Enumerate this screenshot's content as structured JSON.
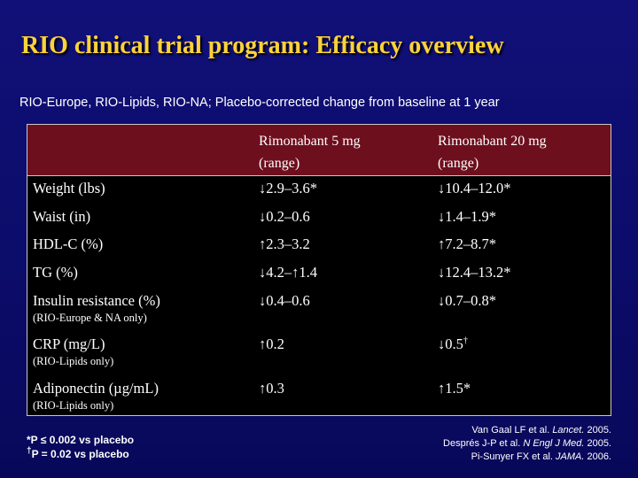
{
  "slide": {
    "title": "RIO clinical trial program: Efficacy overview",
    "subtitle": "RIO-Europe, RIO-Lipids, RIO-NA; Placebo-corrected change from baseline at 1 year"
  },
  "table": {
    "headers": {
      "col1_line1": "Rimonabant 5 mg",
      "col1_line2": "(range)",
      "col2_line1": "Rimonabant 20 mg",
      "col2_line2": "(range)"
    },
    "rows": [
      {
        "label": "Weight (lbs)",
        "note": "",
        "v1": "↓2.9–3.6*",
        "v2": "↓10.4–12.0*"
      },
      {
        "label": "Waist (in)",
        "note": "",
        "v1": "↓0.2–0.6",
        "v2": "↓1.4–1.9*"
      },
      {
        "label": "HDL-C (%)",
        "note": "",
        "v1": "↑2.3–3.2",
        "v2": "↑7.2–8.7*"
      },
      {
        "label": "TG (%)",
        "note": "",
        "v1": "↓4.2–↑1.4",
        "v2": "↓12.4–13.2*"
      },
      {
        "label": "Insulin resistance (%)",
        "note": "(RIO-Europe & NA only)",
        "v1": "↓0.4–0.6",
        "v2": "↓0.7–0.8*"
      },
      {
        "label": "CRP (mg/L)",
        "note": "(RIO-Lipids only)",
        "v1": "↑0.2",
        "v2": "↓0.5",
        "v2_sup": "†"
      },
      {
        "label": "Adiponectin (µg/mL)",
        "note": "(RIO-Lipids only)",
        "v1": "↑0.3",
        "v2": "↑1.5*"
      }
    ]
  },
  "footnotes": {
    "f1": "*P ≤ 0.002 vs placebo",
    "f2_mark": "†",
    "f2": "P = 0.02 vs placebo"
  },
  "references": [
    {
      "authors": "Van Gaal LF et al. ",
      "journal": "Lancet.",
      "year": " 2005."
    },
    {
      "authors": "Després J-P et al. ",
      "journal": "N Engl J Med.",
      "year": " 2005."
    },
    {
      "authors": "Pi-Sunyer FX et al. ",
      "journal": "JAMA.",
      "year": " 2006."
    }
  ]
}
